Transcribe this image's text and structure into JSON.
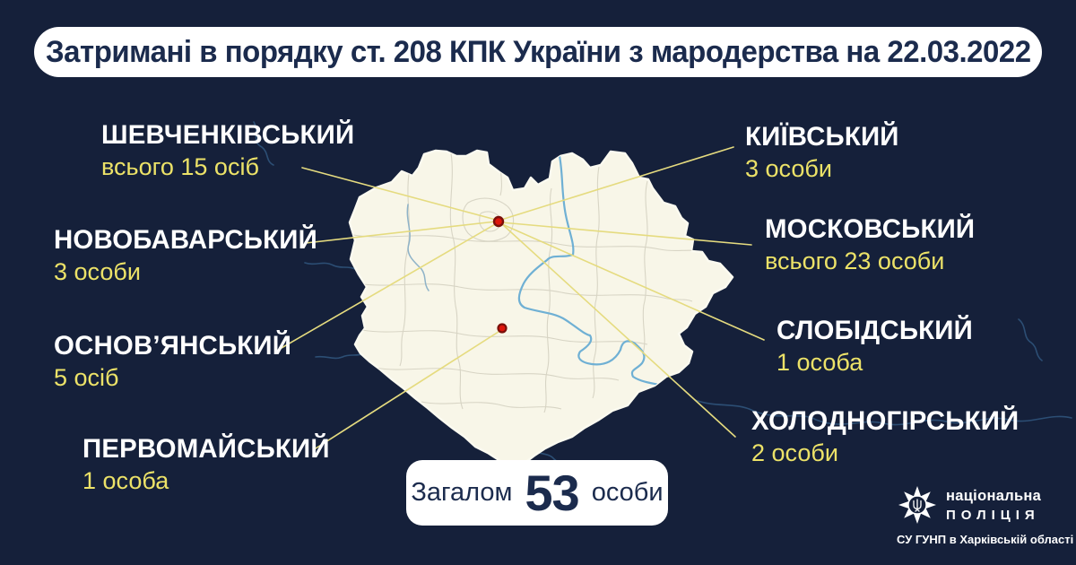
{
  "header": {
    "title": "Затримані в порядку ст. 208 КПК України з мародерства на 22.03.2022"
  },
  "districts": [
    {
      "id": "shevchenkivskyi",
      "name": "ШЕВЧЕНКІВСЬКИЙ",
      "count_label": "всього 15 осіб",
      "count": 15
    },
    {
      "id": "novobavarskyi",
      "name": "НОВОБАВАРСЬКИЙ",
      "count_label": "3 особи",
      "count": 3
    },
    {
      "id": "osnovianskyi",
      "name": "ОСНОВ’ЯНСЬКИЙ",
      "count_label": "5 осіб",
      "count": 5
    },
    {
      "id": "pervomaiskyi",
      "name": "ПЕРВОМАЙСЬКИЙ",
      "count_label": "1 особа",
      "count": 1
    },
    {
      "id": "kyivskyi",
      "name": "КИЇВСЬКИЙ",
      "count_label": "3 особи",
      "count": 3
    },
    {
      "id": "moskovskyi",
      "name": "МОСКОВСЬКИЙ",
      "count_label": "всього 23 особи",
      "count": 23
    },
    {
      "id": "slobidskyi",
      "name": "СЛОБІДСЬКИЙ",
      "count_label": "1 особа",
      "count": 1
    },
    {
      "id": "kholodnohirskyi",
      "name": "ХОЛОДНОГІРСЬКИЙ",
      "count_label": "2 особи",
      "count": 2
    }
  ],
  "total": {
    "prefix": "Загалом",
    "value": "53",
    "suffix": "особи"
  },
  "logo": {
    "line1": "національна",
    "line2": "ПОЛІЦІЯ",
    "sub": "СУ ГУНП в Харківській області"
  },
  "colors": {
    "background": "#15203a",
    "banner": "#ffffff",
    "navy_text": "#1b2b4d",
    "accent_yellow": "#ece268",
    "leader_line": "#e5db7f",
    "map_fill": "#f8f6e8",
    "map_border": "#d6d3c3",
    "river": "#6fb0d4",
    "marker_red": "#de160b"
  },
  "chart_data": {
    "type": "table",
    "title": "Затримані в порядку ст. 208 КПК України з мародерства на 22.03.2022",
    "categories": [
      "Шевченківський",
      "Новобаварський",
      "Основ’янський",
      "Первомайський",
      "Київський",
      "Московський",
      "Слобідський",
      "Холодногірський"
    ],
    "values": [
      15,
      3,
      5,
      1,
      3,
      23,
      1,
      2
    ],
    "total": 53,
    "unit": "осіб",
    "region": "Харківська область"
  }
}
